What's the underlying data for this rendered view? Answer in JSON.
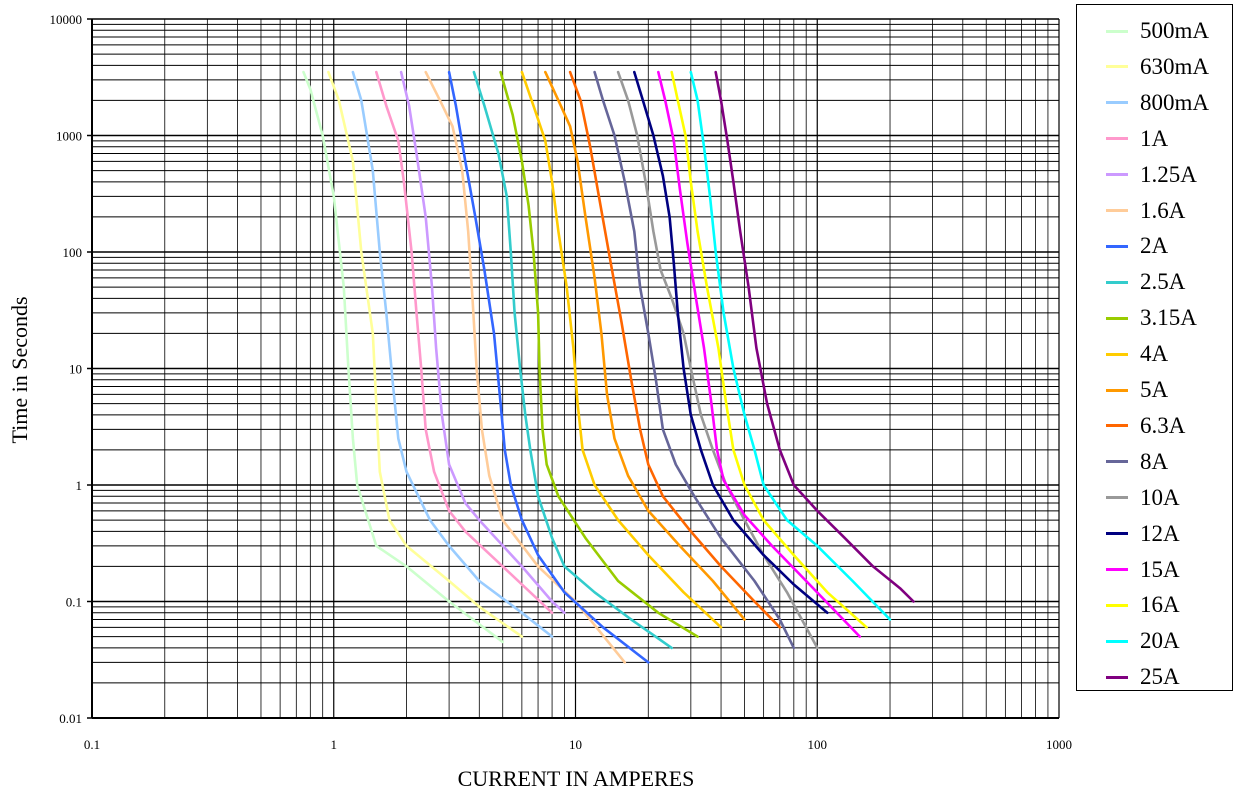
{
  "chart_data": {
    "type": "line",
    "xlabel": "CURRENT IN AMPERES",
    "ylabel": "Time in Seconds",
    "xscale": "log",
    "yscale": "log",
    "xlim": [
      0.1,
      1000
    ],
    "ylim": [
      0.01,
      10000
    ],
    "x_ticks": [
      "0.1",
      "1",
      "10",
      "100",
      "1000"
    ],
    "y_ticks": [
      "0.01",
      "0.1",
      "1",
      "10",
      "100",
      "1000",
      "10000"
    ],
    "grid": true,
    "legend_position": "right",
    "series": [
      {
        "name": "500mA",
        "color": "#ccffcc",
        "points": [
          [
            0.75,
            3500
          ],
          [
            0.8,
            2500
          ],
          [
            0.9,
            1000
          ],
          [
            1.0,
            300
          ],
          [
            1.1,
            50
          ],
          [
            1.15,
            10
          ],
          [
            1.2,
            2.5
          ],
          [
            1.25,
            1
          ],
          [
            1.5,
            0.3
          ],
          [
            2,
            0.2
          ],
          [
            3,
            0.1
          ],
          [
            5,
            0.045
          ]
        ]
      },
      {
        "name": "630mA",
        "color": "#ffff99",
        "points": [
          [
            0.95,
            3500
          ],
          [
            1.05,
            2000
          ],
          [
            1.2,
            600
          ],
          [
            1.3,
            100
          ],
          [
            1.45,
            20
          ],
          [
            1.5,
            5
          ],
          [
            1.55,
            1.3
          ],
          [
            1.7,
            0.5
          ],
          [
            2,
            0.3
          ],
          [
            3,
            0.15
          ],
          [
            4,
            0.09
          ],
          [
            6,
            0.05
          ]
        ]
      },
      {
        "name": "800mA",
        "color": "#99ccff",
        "points": [
          [
            1.2,
            3500
          ],
          [
            1.3,
            2000
          ],
          [
            1.45,
            500
          ],
          [
            1.55,
            100
          ],
          [
            1.65,
            30
          ],
          [
            1.75,
            8
          ],
          [
            1.85,
            2.5
          ],
          [
            2,
            1.3
          ],
          [
            2.5,
            0.5
          ],
          [
            3,
            0.3
          ],
          [
            4,
            0.15
          ],
          [
            6,
            0.08
          ],
          [
            8,
            0.05
          ]
        ]
      },
      {
        "name": "1A",
        "color": "#ff99cc",
        "points": [
          [
            1.5,
            3500
          ],
          [
            1.65,
            1800
          ],
          [
            1.85,
            900
          ],
          [
            1.95,
            400
          ],
          [
            2.1,
            100
          ],
          [
            2.2,
            30
          ],
          [
            2.3,
            10
          ],
          [
            2.4,
            3
          ],
          [
            2.6,
            1.3
          ],
          [
            3,
            0.6
          ],
          [
            3.5,
            0.4
          ],
          [
            5,
            0.2
          ],
          [
            8,
            0.08
          ]
        ]
      },
      {
        "name": "1.25A",
        "color": "#cc99ff",
        "points": [
          [
            1.9,
            3500
          ],
          [
            2.05,
            1800
          ],
          [
            2.2,
            700
          ],
          [
            2.4,
            200
          ],
          [
            2.55,
            50
          ],
          [
            2.65,
            15
          ],
          [
            2.8,
            4
          ],
          [
            3,
            1.5
          ],
          [
            3.5,
            0.7
          ],
          [
            4,
            0.5
          ],
          [
            6,
            0.2
          ],
          [
            8,
            0.1
          ],
          [
            9,
            0.08
          ]
        ]
      },
      {
        "name": "1.6A",
        "color": "#ffcc99",
        "points": [
          [
            2.4,
            3500
          ],
          [
            2.75,
            2000
          ],
          [
            3.1,
            1200
          ],
          [
            3.4,
            500
          ],
          [
            3.6,
            150
          ],
          [
            3.75,
            40
          ],
          [
            3.9,
            10
          ],
          [
            4.1,
            3
          ],
          [
            4.4,
            1.2
          ],
          [
            5,
            0.5
          ],
          [
            7,
            0.2
          ],
          [
            10,
            0.1
          ],
          [
            16,
            0.03
          ]
        ]
      },
      {
        "name": "2A",
        "color": "#3366ff",
        "points": [
          [
            3,
            3500
          ],
          [
            3.2,
            1800
          ],
          [
            3.5,
            600
          ],
          [
            3.85,
            200
          ],
          [
            4.2,
            70
          ],
          [
            4.6,
            20
          ],
          [
            4.9,
            5
          ],
          [
            5.1,
            2
          ],
          [
            5.4,
            1
          ],
          [
            6,
            0.5
          ],
          [
            7,
            0.25
          ],
          [
            9,
            0.12
          ],
          [
            13,
            0.06
          ],
          [
            20,
            0.03
          ]
        ]
      },
      {
        "name": "2.5A",
        "color": "#33cccc",
        "points": [
          [
            3.8,
            3500
          ],
          [
            4.2,
            1800
          ],
          [
            4.8,
            700
          ],
          [
            5.2,
            300
          ],
          [
            5.4,
            100
          ],
          [
            5.6,
            30
          ],
          [
            5.9,
            10
          ],
          [
            6.2,
            4
          ],
          [
            6.5,
            2
          ],
          [
            7,
            0.8
          ],
          [
            8,
            0.35
          ],
          [
            9,
            0.2
          ],
          [
            12,
            0.12
          ],
          [
            17,
            0.07
          ],
          [
            25,
            0.04
          ]
        ]
      },
      {
        "name": "3.15A",
        "color": "#99cc00",
        "points": [
          [
            4.9,
            3500
          ],
          [
            5.5,
            1500
          ],
          [
            6,
            600
          ],
          [
            6.4,
            250
          ],
          [
            6.7,
            100
          ],
          [
            7,
            30
          ],
          [
            7.1,
            10
          ],
          [
            7.3,
            3
          ],
          [
            7.6,
            1.5
          ],
          [
            8.5,
            0.8
          ],
          [
            11,
            0.35
          ],
          [
            15,
            0.15
          ],
          [
            22,
            0.08
          ],
          [
            32,
            0.05
          ]
        ]
      },
      {
        "name": "4A",
        "color": "#ffcc00",
        "points": [
          [
            6,
            3500
          ],
          [
            6.7,
            1800
          ],
          [
            7.5,
            900
          ],
          [
            8,
            400
          ],
          [
            8.5,
            150
          ],
          [
            9.2,
            50
          ],
          [
            9.8,
            15
          ],
          [
            10.2,
            5
          ],
          [
            10.7,
            2
          ],
          [
            12,
            1
          ],
          [
            15,
            0.5
          ],
          [
            20,
            0.25
          ],
          [
            28,
            0.12
          ],
          [
            40,
            0.06
          ]
        ]
      },
      {
        "name": "5A",
        "color": "#ff9900",
        "points": [
          [
            7.5,
            3500
          ],
          [
            8.5,
            2000
          ],
          [
            9.5,
            1200
          ],
          [
            10.2,
            600
          ],
          [
            11,
            200
          ],
          [
            12,
            60
          ],
          [
            12.8,
            20
          ],
          [
            13.5,
            6
          ],
          [
            14.5,
            2.5
          ],
          [
            16.5,
            1.2
          ],
          [
            20,
            0.6
          ],
          [
            27,
            0.3
          ],
          [
            37,
            0.15
          ],
          [
            50,
            0.07
          ]
        ]
      },
      {
        "name": "6.3A",
        "color": "#ff6600",
        "points": [
          [
            9.5,
            3500
          ],
          [
            10.5,
            2000
          ],
          [
            11.5,
            800
          ],
          [
            12.5,
            300
          ],
          [
            14,
            80
          ],
          [
            15.5,
            25
          ],
          [
            17,
            8
          ],
          [
            18.5,
            3
          ],
          [
            20,
            1.5
          ],
          [
            23,
            0.8
          ],
          [
            30,
            0.4
          ],
          [
            40,
            0.2
          ],
          [
            55,
            0.1
          ],
          [
            70,
            0.06
          ]
        ]
      },
      {
        "name": "8A",
        "color": "#666699",
        "points": [
          [
            12,
            3500
          ],
          [
            13,
            2000
          ],
          [
            14.5,
            1000
          ],
          [
            16,
            400
          ],
          [
            17.5,
            150
          ],
          [
            18.5,
            50
          ],
          [
            20,
            20
          ],
          [
            21.5,
            8
          ],
          [
            23,
            3
          ],
          [
            26,
            1.5
          ],
          [
            31,
            0.8
          ],
          [
            40,
            0.35
          ],
          [
            55,
            0.15
          ],
          [
            70,
            0.07
          ],
          [
            80,
            0.04
          ]
        ]
      },
      {
        "name": "10A",
        "color": "#999999",
        "points": [
          [
            15,
            3500
          ],
          [
            16.5,
            2000
          ],
          [
            18,
            1000
          ],
          [
            19.5,
            400
          ],
          [
            21,
            150
          ],
          [
            22.5,
            70
          ],
          [
            25,
            40
          ],
          [
            28,
            20
          ],
          [
            30,
            10
          ],
          [
            33,
            4
          ],
          [
            37,
            2
          ],
          [
            42,
            1
          ],
          [
            50,
            0.5
          ],
          [
            60,
            0.25
          ],
          [
            75,
            0.12
          ],
          [
            100,
            0.04
          ]
        ]
      },
      {
        "name": "12A",
        "color": "#000080",
        "points": [
          [
            17.5,
            3500
          ],
          [
            19,
            2000
          ],
          [
            21,
            1000
          ],
          [
            23,
            450
          ],
          [
            24.5,
            200
          ],
          [
            25.5,
            80
          ],
          [
            26.5,
            30
          ],
          [
            28,
            10
          ],
          [
            30,
            4
          ],
          [
            33,
            2
          ],
          [
            37,
            1
          ],
          [
            45,
            0.5
          ],
          [
            60,
            0.25
          ],
          [
            80,
            0.14
          ],
          [
            110,
            0.08
          ]
        ]
      },
      {
        "name": "15A",
        "color": "#ff00ff",
        "points": [
          [
            22,
            3500
          ],
          [
            23.5,
            2000
          ],
          [
            25.5,
            900
          ],
          [
            27,
            350
          ],
          [
            29,
            120
          ],
          [
            31.5,
            40
          ],
          [
            34,
            15
          ],
          [
            36.5,
            5
          ],
          [
            38.5,
            2
          ],
          [
            41,
            1.1
          ],
          [
            50,
            0.55
          ],
          [
            65,
            0.3
          ],
          [
            90,
            0.15
          ],
          [
            150,
            0.05
          ]
        ]
      },
      {
        "name": "16A",
        "color": "#ffff00",
        "points": [
          [
            25,
            3500
          ],
          [
            26.5,
            2000
          ],
          [
            28.5,
            1000
          ],
          [
            30,
            400
          ],
          [
            32,
            150
          ],
          [
            35,
            50
          ],
          [
            39,
            15
          ],
          [
            42,
            5
          ],
          [
            45,
            2
          ],
          [
            50,
            1
          ],
          [
            60,
            0.5
          ],
          [
            80,
            0.25
          ],
          [
            110,
            0.12
          ],
          [
            160,
            0.06
          ]
        ]
      },
      {
        "name": "20A",
        "color": "#00ffff",
        "points": [
          [
            30,
            3500
          ],
          [
            32,
            2000
          ],
          [
            34,
            800
          ],
          [
            36,
            300
          ],
          [
            38,
            100
          ],
          [
            41,
            30
          ],
          [
            45,
            10
          ],
          [
            50,
            4
          ],
          [
            55,
            2
          ],
          [
            60,
            1
          ],
          [
            75,
            0.5
          ],
          [
            100,
            0.3
          ],
          [
            140,
            0.15
          ],
          [
            200,
            0.07
          ]
        ]
      },
      {
        "name": "25A",
        "color": "#800080",
        "points": [
          [
            38,
            3500
          ],
          [
            40,
            2000
          ],
          [
            42.5,
            900
          ],
          [
            45,
            400
          ],
          [
            48,
            150
          ],
          [
            52,
            50
          ],
          [
            56,
            15
          ],
          [
            62,
            5
          ],
          [
            70,
            2
          ],
          [
            80,
            1
          ],
          [
            100,
            0.6
          ],
          [
            130,
            0.35
          ],
          [
            170,
            0.2
          ],
          [
            220,
            0.13
          ],
          [
            250,
            0.1
          ]
        ]
      }
    ]
  }
}
